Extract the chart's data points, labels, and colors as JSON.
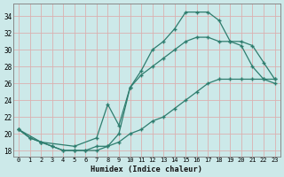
{
  "xlabel": "Humidex (Indice chaleur)",
  "bg_color": "#cce9e9",
  "grid_color": "#dbb0b0",
  "line_color": "#2e7d6e",
  "xlim": [
    -0.5,
    23.5
  ],
  "ylim": [
    17.3,
    35.5
  ],
  "xticks": [
    0,
    1,
    2,
    3,
    4,
    5,
    6,
    7,
    8,
    9,
    10,
    11,
    12,
    13,
    14,
    15,
    16,
    17,
    18,
    19,
    20,
    21,
    22,
    23
  ],
  "yticks": [
    18,
    20,
    22,
    24,
    26,
    28,
    30,
    32,
    34
  ],
  "curve_top_x": [
    0,
    1,
    2,
    3,
    4,
    5,
    6,
    7,
    8,
    9,
    10,
    11,
    12,
    13,
    14,
    15,
    16,
    17,
    18,
    19,
    20,
    21,
    22,
    23
  ],
  "curve_top_y": [
    20.5,
    19.5,
    19.0,
    18.5,
    18.0,
    18.0,
    18.0,
    18.0,
    18.5,
    20.0,
    25.5,
    27.5,
    30.0,
    31.0,
    32.5,
    34.5,
    34.5,
    34.5,
    33.5,
    31.0,
    30.5,
    28.0,
    26.5,
    26.0
  ],
  "curve_mid_x": [
    0,
    2,
    5,
    7,
    8,
    9,
    10,
    11,
    12,
    13,
    14,
    15,
    16,
    17,
    18,
    19,
    20,
    21,
    22,
    23
  ],
  "curve_mid_y": [
    20.5,
    19.0,
    18.5,
    19.5,
    23.5,
    21.0,
    25.5,
    27.0,
    28.0,
    29.0,
    30.0,
    31.0,
    31.5,
    31.5,
    31.0,
    31.0,
    31.0,
    30.5,
    28.5,
    26.5
  ],
  "curve_bot_x": [
    0,
    1,
    2,
    3,
    4,
    5,
    6,
    7,
    8,
    9,
    10,
    11,
    12,
    13,
    14,
    15,
    16,
    17,
    18,
    19,
    20,
    21,
    22,
    23
  ],
  "curve_bot_y": [
    20.5,
    19.5,
    19.0,
    18.5,
    18.0,
    18.0,
    18.0,
    18.5,
    18.5,
    19.0,
    20.0,
    20.5,
    21.5,
    22.0,
    23.0,
    24.0,
    25.0,
    26.0,
    26.5,
    26.5,
    26.5,
    26.5,
    26.5,
    26.5
  ]
}
